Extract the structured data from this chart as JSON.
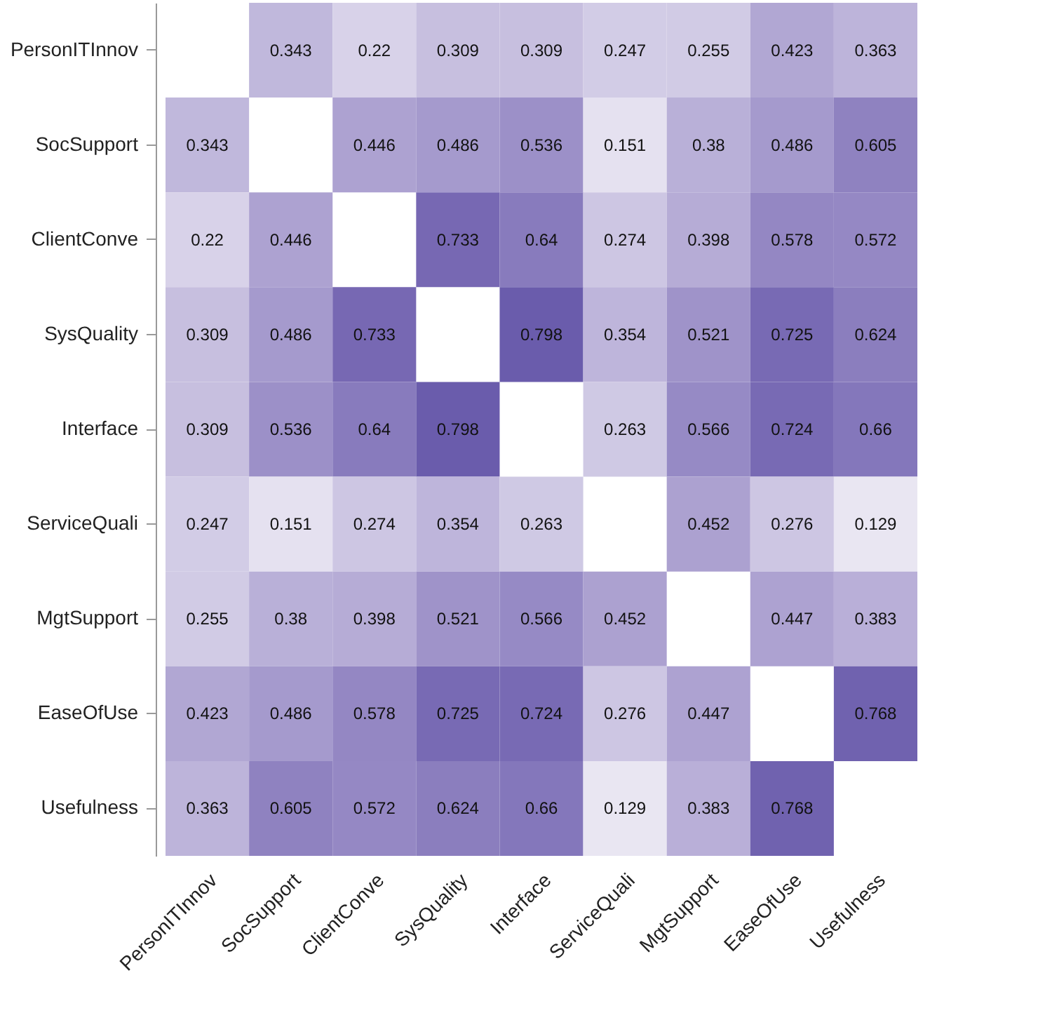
{
  "chart_data": {
    "type": "heatmap",
    "categories": [
      "PersonITInnov",
      "SocSupport",
      "ClientConve",
      "SysQuality",
      "Interface",
      "ServiceQuali",
      "MgtSupport",
      "EaseOfUse",
      "Usefulness"
    ],
    "y_categories": [
      "PersonITInnov",
      "SocSupport",
      "ClientConve",
      "SysQuality",
      "Interface",
      "ServiceQuali",
      "MgtSupport",
      "EaseOfUse",
      "Usefulness"
    ],
    "cells": [
      [
        null,
        0.343,
        0.22,
        0.309,
        0.309,
        0.247,
        0.255,
        0.423,
        0.363
      ],
      [
        0.343,
        null,
        0.446,
        0.486,
        0.536,
        0.151,
        0.38,
        0.486,
        0.605
      ],
      [
        0.22,
        0.446,
        null,
        0.733,
        0.64,
        0.274,
        0.398,
        0.578,
        0.572
      ],
      [
        0.309,
        0.486,
        0.733,
        null,
        0.798,
        0.354,
        0.521,
        0.725,
        0.624
      ],
      [
        0.309,
        0.536,
        0.64,
        0.798,
        null,
        0.263,
        0.566,
        0.724,
        0.66
      ],
      [
        0.247,
        0.151,
        0.274,
        0.354,
        0.263,
        null,
        0.452,
        0.276,
        0.129
      ],
      [
        0.255,
        0.38,
        0.398,
        0.521,
        0.566,
        0.452,
        null,
        0.447,
        0.383
      ],
      [
        0.423,
        0.486,
        0.578,
        0.725,
        0.724,
        0.276,
        0.447,
        null,
        0.768
      ],
      [
        0.363,
        0.605,
        0.572,
        0.624,
        0.66,
        0.129,
        0.383,
        0.768,
        null
      ]
    ],
    "data_labels": true,
    "grid": false
  }
}
